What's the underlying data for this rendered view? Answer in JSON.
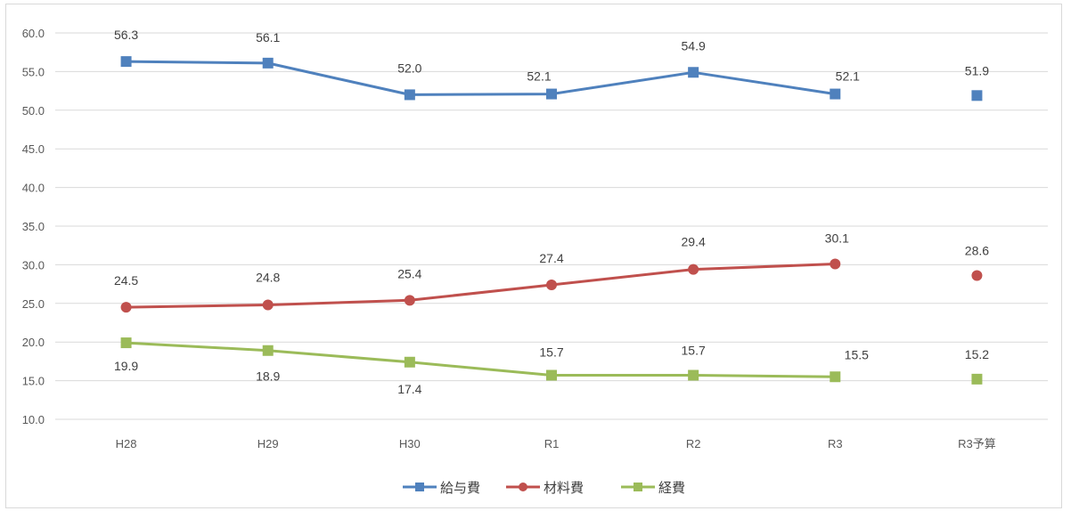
{
  "chart_data": {
    "type": "line",
    "categories": [
      "H28",
      "H29",
      "H30",
      "R1",
      "R2",
      "R3",
      "R3予算"
    ],
    "series": [
      {
        "name": "給与費",
        "values": [
          56.3,
          56.1,
          52.0,
          52.1,
          54.9,
          52.1,
          51.9
        ],
        "color": "#4F81BD",
        "marker": "square"
      },
      {
        "name": "材料費",
        "values": [
          24.5,
          24.8,
          25.4,
          27.4,
          29.4,
          30.1,
          28.6
        ],
        "color": "#C0504D",
        "marker": "circle"
      },
      {
        "name": "経費",
        "values": [
          19.9,
          18.9,
          17.4,
          15.7,
          15.7,
          15.5,
          15.2
        ],
        "color": "#9BBB59",
        "marker": "square"
      }
    ],
    "line_connected": [
      true,
      true,
      true,
      true,
      true,
      true,
      false
    ],
    "ylim": [
      10,
      60
    ],
    "ytick_labels": [
      "10.0",
      "15.0",
      "20.0",
      "25.0",
      "30.0",
      "35.0",
      "40.0",
      "45.0",
      "50.0",
      "55.0",
      "60.0"
    ],
    "grid": true,
    "data_labels": true,
    "legend": "bottom"
  }
}
